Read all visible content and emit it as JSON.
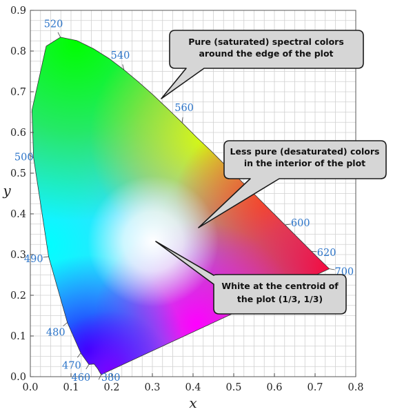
{
  "chart_data": {
    "type": "scatter",
    "title": "",
    "xlabel": "x",
    "ylabel": "y",
    "xlim": [
      0.0,
      0.8
    ],
    "ylim": [
      0.0,
      0.9
    ],
    "x_ticks": [
      "0.0",
      "0.1",
      "0.2",
      "0.3",
      "0.4",
      "0.5",
      "0.6",
      "0.7",
      "0.8"
    ],
    "y_ticks": [
      "0.0",
      "0.1",
      "0.2",
      "0.3",
      "0.4",
      "0.5",
      "0.6",
      "0.7",
      "0.8",
      "0.9"
    ],
    "grid": true,
    "series": [
      {
        "points": [
          {
            "x": 0.174,
            "y": 0.005
          },
          {
            "x": 0.171,
            "y": 0.01
          },
          {
            "x": 0.166,
            "y": 0.019
          },
          {
            "x": 0.157,
            "y": 0.031
          },
          {
            "x": 0.144,
            "y": 0.03
          },
          {
            "x": 0.124,
            "y": 0.058
          },
          {
            "x": 0.091,
            "y": 0.133
          },
          {
            "x": 0.045,
            "y": 0.295
          },
          {
            "x": 0.008,
            "y": 0.538
          },
          {
            "x": 0.004,
            "y": 0.655
          },
          {
            "x": 0.039,
            "y": 0.812
          },
          {
            "x": 0.074,
            "y": 0.834
          },
          {
            "x": 0.114,
            "y": 0.826
          },
          {
            "x": 0.155,
            "y": 0.806
          },
          {
            "x": 0.193,
            "y": 0.782
          },
          {
            "x": 0.23,
            "y": 0.754
          },
          {
            "x": 0.266,
            "y": 0.724
          },
          {
            "x": 0.302,
            "y": 0.692
          },
          {
            "x": 0.337,
            "y": 0.659
          },
          {
            "x": 0.373,
            "y": 0.624
          },
          {
            "x": 0.408,
            "y": 0.589
          },
          {
            "x": 0.444,
            "y": 0.555
          },
          {
            "x": 0.479,
            "y": 0.52
          },
          {
            "x": 0.512,
            "y": 0.487
          },
          {
            "x": 0.542,
            "y": 0.457
          },
          {
            "x": 0.575,
            "y": 0.424
          },
          {
            "x": 0.607,
            "y": 0.392
          },
          {
            "x": 0.641,
            "y": 0.358
          },
          {
            "x": 0.673,
            "y": 0.326
          },
          {
            "x": 0.701,
            "y": 0.298
          },
          {
            "x": 0.735,
            "y": 0.265
          }
        ]
      }
    ],
    "wavelength_labels": [
      {
        "text": "520",
        "x": 0.074,
        "y": 0.834
      },
      {
        "text": "540",
        "x": 0.23,
        "y": 0.754
      },
      {
        "text": "560",
        "x": 0.373,
        "y": 0.624
      },
      {
        "text": "500",
        "x": 0.008,
        "y": 0.538
      },
      {
        "text": "600",
        "x": 0.627,
        "y": 0.373
      },
      {
        "text": "620",
        "x": 0.691,
        "y": 0.308
      },
      {
        "text": "490",
        "x": 0.045,
        "y": 0.295
      },
      {
        "text": "700",
        "x": 0.735,
        "y": 0.265
      },
      {
        "text": "480",
        "x": 0.091,
        "y": 0.133
      },
      {
        "text": "470",
        "x": 0.124,
        "y": 0.058
      },
      {
        "text": "460",
        "x": 0.144,
        "y": 0.03
      },
      {
        "text": "380",
        "x": 0.174,
        "y": 0.005
      }
    ],
    "annotations": [
      {
        "text": [
          "Pure (saturated) spectral colors",
          "around the edge of the plot"
        ],
        "target": {
          "x": 0.32,
          "y": 0.68
        }
      },
      {
        "text": [
          "Less pure (desaturated) colors",
          "in the interior of the plot"
        ],
        "target": {
          "x": 0.42,
          "y": 0.37
        }
      },
      {
        "text": [
          "White at the centroid of",
          "the plot (1/3, 1/3)"
        ],
        "target": {
          "x": 0.333,
          "y": 0.333
        }
      }
    ],
    "colors": {
      "wavelength_label": "#2b74c9",
      "callout_fill": "#d6d6d6",
      "callout_stroke": "#1a1a1a",
      "grid": "#d0d0d0"
    }
  }
}
